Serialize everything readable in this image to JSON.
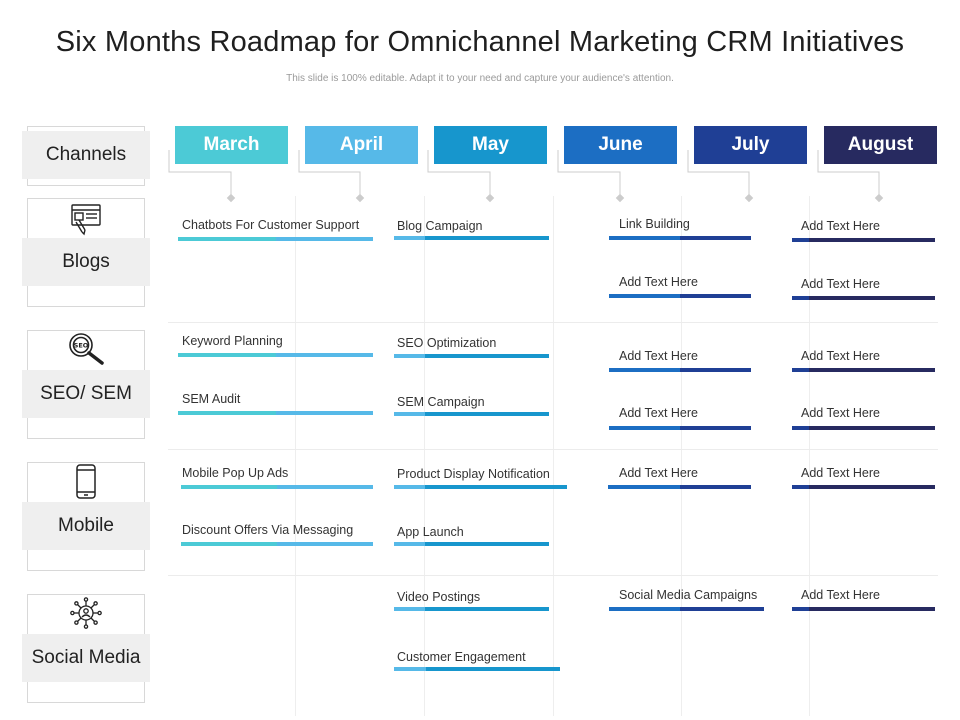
{
  "header": {
    "title": "Six Months Roadmap for Omnichannel Marketing CRM Initiatives",
    "subtitle": "This slide is 100% editable. Adapt it to your need and capture your audience's attention."
  },
  "months": [
    {
      "label": "March",
      "color": "#4ccad6"
    },
    {
      "label": "April",
      "color": "#56b9e8"
    },
    {
      "label": "May",
      "color": "#1796cd"
    },
    {
      "label": "June",
      "color": "#1c6ec3"
    },
    {
      "label": "July",
      "color": "#1f3f95"
    },
    {
      "label": "August",
      "color": "#272a60"
    }
  ],
  "channels_header": "Channels",
  "channels": [
    {
      "label": "Blogs",
      "icon": "blog-icon"
    },
    {
      "label": "SEO/ SEM",
      "icon": "seo-search-icon"
    },
    {
      "label": "Mobile",
      "icon": "mobile-phone-icon"
    },
    {
      "label": "Social Media",
      "icon": "social-network-icon"
    }
  ],
  "tasks": [
    {
      "label": "Chatbots For Customer Support",
      "colors": [
        "#4ccad6",
        "#56b9e8"
      ]
    },
    {
      "label": "Blog Campaign",
      "colors": [
        "#56b9e8",
        "#1796cd"
      ]
    },
    {
      "label": "Link Building",
      "colors": [
        "#1c6ec3",
        "#1f3f95"
      ]
    },
    {
      "label": "Add Text Here",
      "colors": [
        "#1f3f95",
        "#272a60"
      ]
    },
    {
      "label": "Add Text Here",
      "colors": [
        "#1c6ec3",
        "#1f3f95"
      ]
    },
    {
      "label": "Add Text Here",
      "colors": [
        "#1f3f95",
        "#272a60"
      ]
    },
    {
      "label": "Keyword Planning",
      "colors": [
        "#4ccad6",
        "#56b9e8"
      ]
    },
    {
      "label": "SEO Optimization",
      "colors": [
        "#56b9e8",
        "#1796cd"
      ]
    },
    {
      "label": "Add Text Here",
      "colors": [
        "#1c6ec3",
        "#1f3f95"
      ]
    },
    {
      "label": "Add Text Here",
      "colors": [
        "#1f3f95",
        "#272a60"
      ]
    },
    {
      "label": "SEM Audit",
      "colors": [
        "#4ccad6",
        "#56b9e8"
      ]
    },
    {
      "label": "SEM Campaign",
      "colors": [
        "#56b9e8",
        "#1796cd"
      ]
    },
    {
      "label": "Add Text Here",
      "colors": [
        "#1c6ec3",
        "#1f3f95"
      ]
    },
    {
      "label": "Add Text Here",
      "colors": [
        "#1f3f95",
        "#272a60"
      ]
    },
    {
      "label": "Mobile Pop Up Ads",
      "colors": [
        "#4ccad6",
        "#56b9e8"
      ]
    },
    {
      "label": "Product Display Notification",
      "colors": [
        "#56b9e8",
        "#1796cd"
      ]
    },
    {
      "label": "Add Text Here",
      "colors": [
        "#1c6ec3",
        "#1f3f95"
      ]
    },
    {
      "label": "Add Text Here",
      "colors": [
        "#1f3f95",
        "#272a60"
      ]
    },
    {
      "label": "Discount Offers Via Messaging",
      "colors": [
        "#4ccad6",
        "#56b9e8"
      ]
    },
    {
      "label": "App Launch",
      "colors": [
        "#56b9e8",
        "#1796cd"
      ]
    },
    {
      "label": "Video Postings",
      "colors": [
        "#56b9e8",
        "#1796cd"
      ]
    },
    {
      "label": "Social Media Campaigns",
      "colors": [
        "#1c6ec3",
        "#1f3f95"
      ]
    },
    {
      "label": "Add Text Here",
      "colors": [
        "#1f3f95",
        "#272a60"
      ]
    },
    {
      "label": "Customer Engagement",
      "colors": [
        "#56b9e8",
        "#1796cd"
      ]
    }
  ]
}
